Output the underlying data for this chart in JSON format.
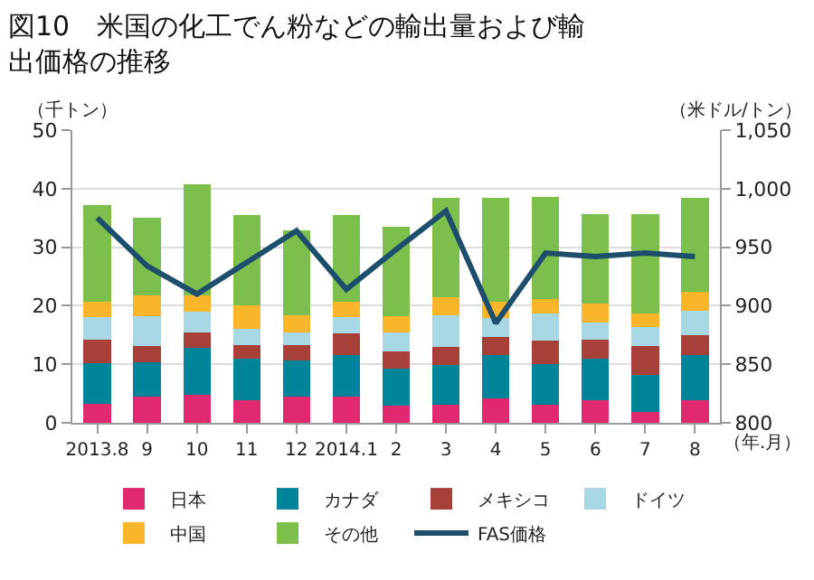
{
  "chart_data": {
    "type": "bar",
    "stacked": true,
    "title": "図10　米国の化工でん粉などの輸出量および輸出価格の推移",
    "xlabel": "（年.月）",
    "ylabel": "（千トン）",
    "y2label": "（米ドル/トン）",
    "categories": [
      "2013.8",
      "9",
      "10",
      "11",
      "12",
      "2014.1",
      "2",
      "3",
      "4",
      "5",
      "6",
      "7",
      "8"
    ],
    "series": [
      {
        "name": "日本",
        "color": "#e0296e",
        "values": [
          3.3,
          4.5,
          4.8,
          3.9,
          4.5,
          4.5,
          2.9,
          3.1,
          4.2,
          3.1,
          3.9,
          1.8,
          3.9
        ]
      },
      {
        "name": "カナダ",
        "color": "#00849a",
        "values": [
          6.9,
          5.9,
          8.0,
          7.1,
          6.2,
          7.0,
          6.4,
          6.8,
          7.3,
          6.9,
          7.1,
          6.4,
          7.6
        ]
      },
      {
        "name": "メキシコ",
        "color": "#a8403a",
        "values": [
          4.0,
          2.7,
          2.6,
          2.3,
          2.6,
          3.8,
          2.9,
          3.0,
          3.2,
          4.0,
          3.2,
          4.9,
          3.4
        ]
      },
      {
        "name": "ドイツ",
        "color": "#a8d8e4",
        "values": [
          3.8,
          5.1,
          3.6,
          2.7,
          2.1,
          2.8,
          3.2,
          5.5,
          3.2,
          4.7,
          2.9,
          3.2,
          4.2
        ]
      },
      {
        "name": "中国",
        "color": "#f9b62a",
        "values": [
          2.7,
          3.6,
          2.8,
          4.0,
          2.9,
          2.6,
          2.8,
          3.1,
          2.8,
          2.5,
          3.3,
          2.4,
          3.3
        ]
      },
      {
        "name": "その他",
        "color": "#7dbf4d",
        "values": [
          16.5,
          13.2,
          18.9,
          15.5,
          14.5,
          14.8,
          15.3,
          16.9,
          17.7,
          17.4,
          15.3,
          17.0,
          16.1
        ]
      },
      {
        "name": "FAS価格",
        "type": "line",
        "axis": "y2",
        "color": "#1d4e6b",
        "values": [
          975,
          934,
          910,
          937,
          964,
          914,
          948,
          981,
          885,
          945,
          942,
          945,
          942
        ]
      }
    ],
    "ylim": [
      0,
      50
    ],
    "yticks": [
      0,
      10,
      20,
      30,
      40,
      50
    ],
    "y2lim": [
      800,
      1050
    ],
    "y2ticks": [
      800,
      850,
      900,
      950,
      {
        "value": 1000,
        "label": "1,000"
      },
      {
        "value": 1050,
        "label": "1,050"
      }
    ],
    "grid": "y",
    "legend": "bottom",
    "marker": "none",
    "line_style": "solid"
  }
}
